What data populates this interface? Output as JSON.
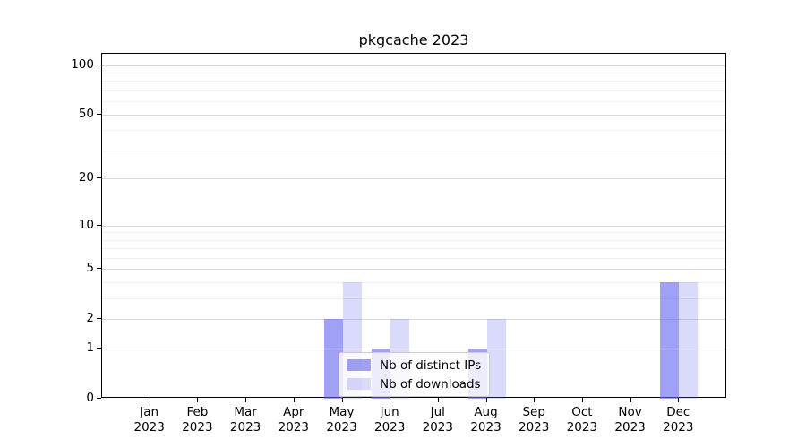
{
  "title": "pkgcache 2023",
  "chart_data": {
    "type": "bar",
    "title": "pkgcache 2023",
    "categories": [
      "Jan",
      "Feb",
      "Mar",
      "Apr",
      "May",
      "Jun",
      "Jul",
      "Aug",
      "Sep",
      "Oct",
      "Nov",
      "Dec"
    ],
    "category_year": "2023",
    "series": [
      {
        "name": "Nb of distinct IPs",
        "color": "rgba(102,102,238,0.62)",
        "values": [
          0,
          0,
          0,
          0,
          2,
          1,
          0,
          1,
          0,
          0,
          0,
          4
        ]
      },
      {
        "name": "Nb of downloads",
        "color": "rgba(102,102,238,0.24)",
        "values": [
          0,
          0,
          0,
          0,
          4,
          2,
          0,
          2,
          0,
          0,
          0,
          4
        ]
      }
    ],
    "xlabel": "",
    "ylabel": "",
    "scale": "log1p",
    "ylim": [
      0,
      117
    ],
    "y_major_ticks": [
      0,
      1,
      2,
      5,
      10,
      20,
      50,
      100
    ],
    "y_minor_ticks": [
      3,
      4,
      6,
      7,
      8,
      9,
      30,
      40,
      60,
      70,
      80,
      90
    ],
    "grid": "horizontal-on",
    "legend_position": "lower-center"
  }
}
